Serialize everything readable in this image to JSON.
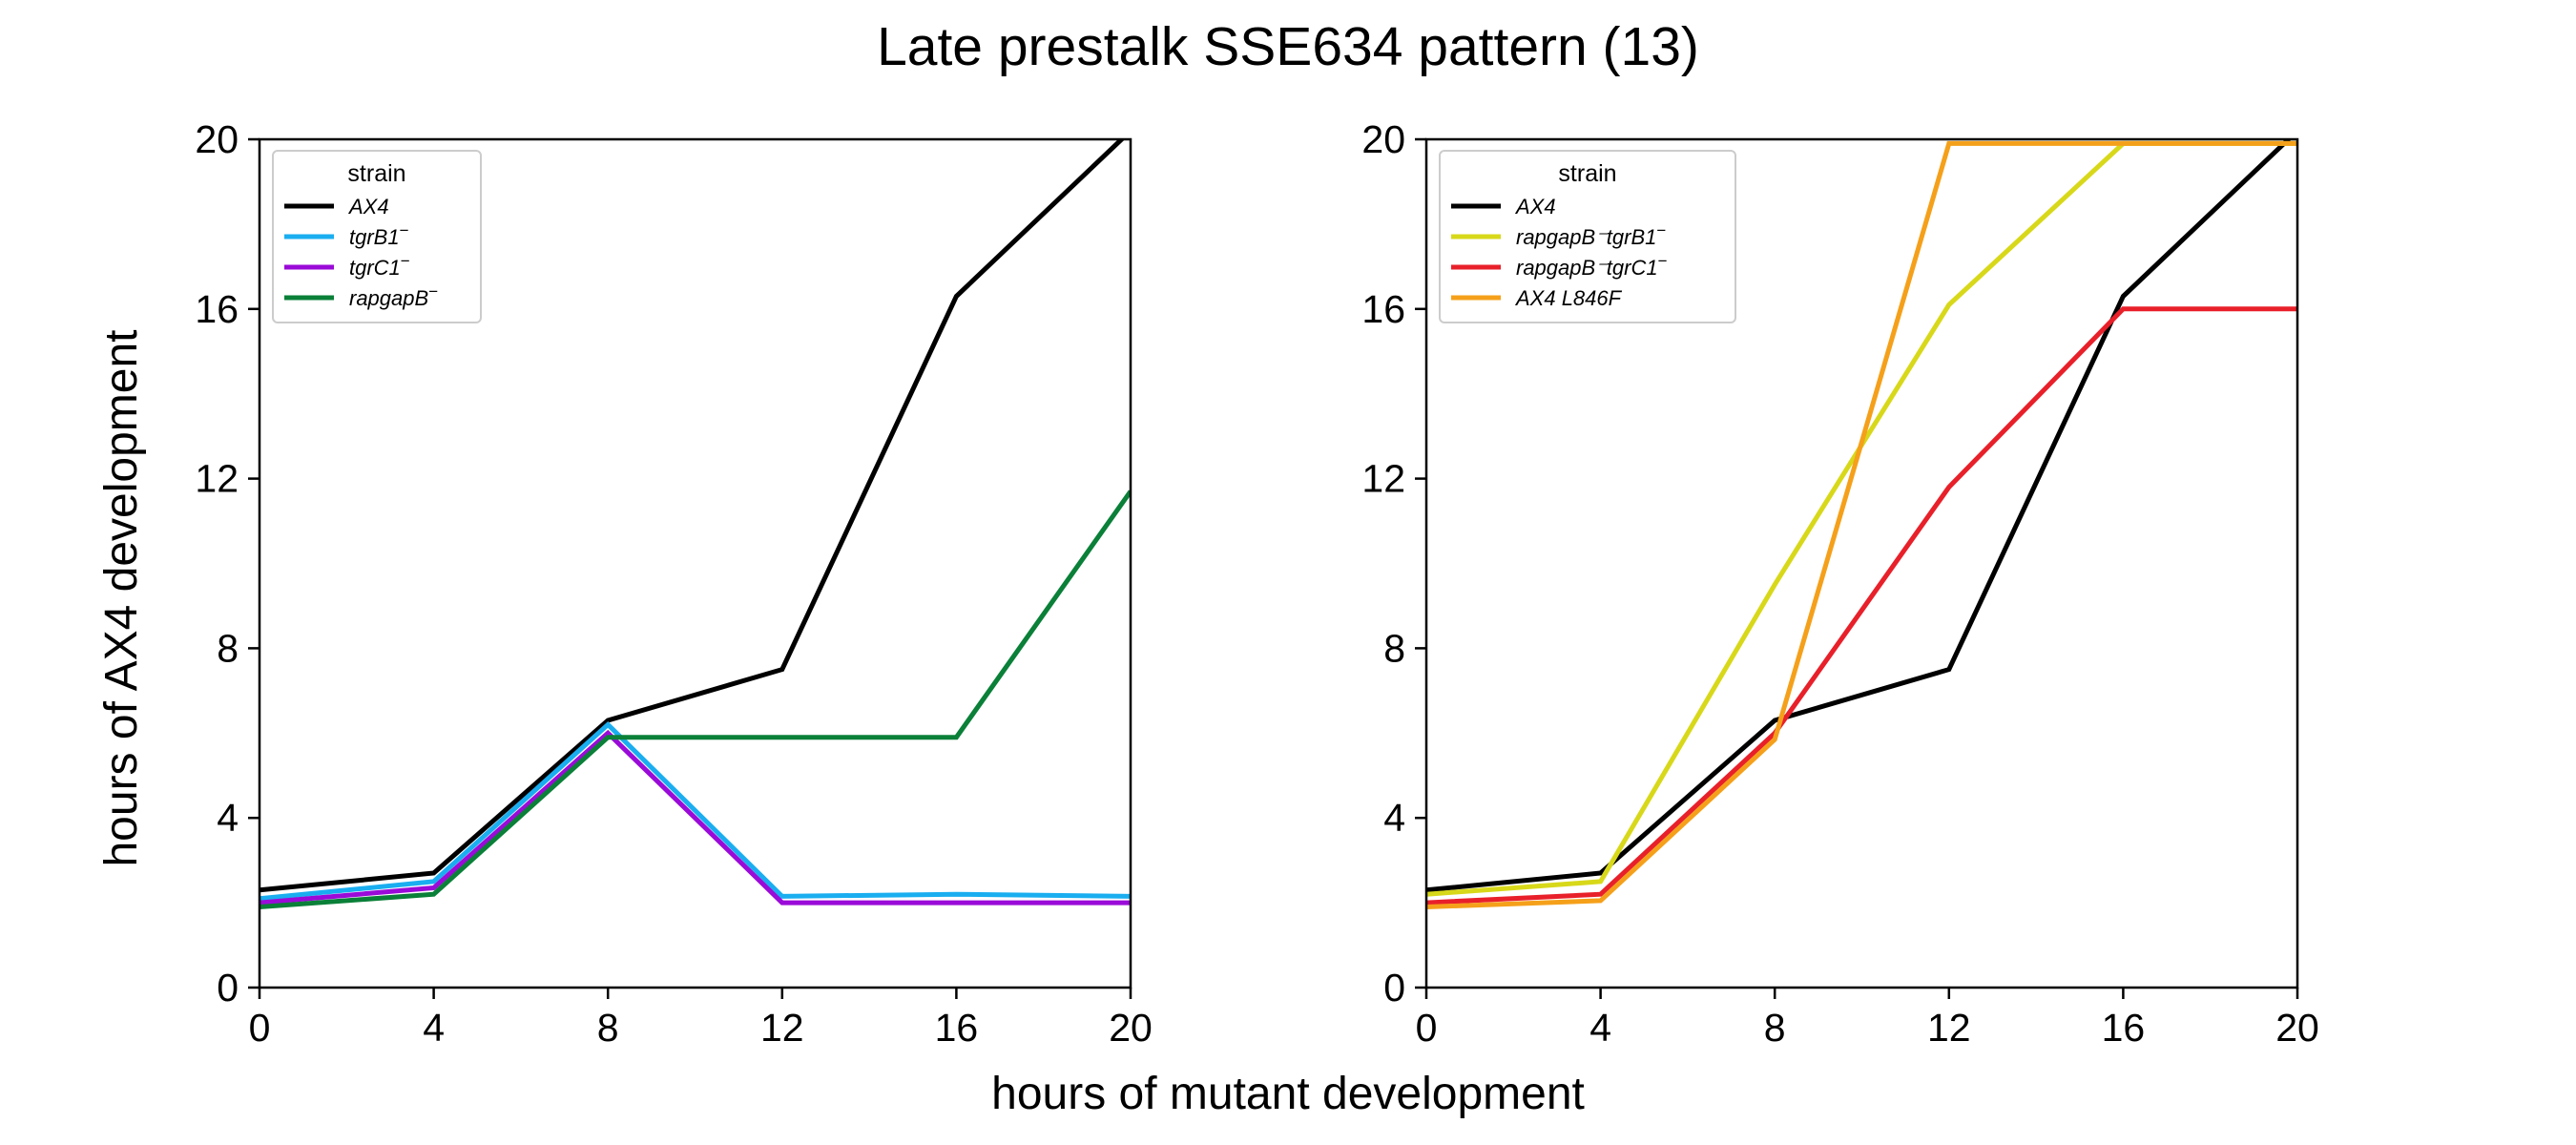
{
  "title": "Late prestalk SSE634 pattern (13)",
  "xlabel": "hours of mutant development",
  "ylabel": "hours of AX4 development",
  "chart_data": [
    {
      "type": "line",
      "x": [
        0,
        4,
        8,
        12,
        16,
        20
      ],
      "xlim": [
        0,
        20
      ],
      "ylim": [
        0,
        20
      ],
      "xticks": [
        "0",
        "4",
        "8",
        "12",
        "16",
        "20"
      ],
      "yticks": [
        "0",
        "4",
        "8",
        "12",
        "16",
        "20"
      ],
      "grid": false,
      "legend": {
        "title": "strain",
        "position": "top-left"
      },
      "series": [
        {
          "name": "AX4",
          "name_main": "AX4",
          "name_sup": "",
          "color": "#000000",
          "values": [
            2.3,
            2.7,
            6.3,
            7.5,
            16.3,
            20.2
          ]
        },
        {
          "name": "tgrB1⁻",
          "name_main": "tgrB1",
          "name_sup": "−",
          "color": "#1aaef0",
          "values": [
            2.1,
            2.5,
            6.2,
            2.15,
            2.2,
            2.15
          ]
        },
        {
          "name": "tgrC1⁻",
          "name_main": "tgrC1",
          "name_sup": "−",
          "color": "#9a0ad8",
          "values": [
            2.0,
            2.35,
            6.0,
            2.0,
            2.0,
            2.0
          ]
        },
        {
          "name": "rapgapB⁻",
          "name_main": "rapgapB",
          "name_sup": "−",
          "color": "#0a8038",
          "values": [
            1.9,
            2.2,
            5.9,
            5.9,
            5.9,
            11.7
          ]
        }
      ]
    },
    {
      "type": "line",
      "x": [
        0,
        4,
        8,
        12,
        16,
        20
      ],
      "xlim": [
        0,
        20
      ],
      "ylim": [
        0,
        20
      ],
      "xticks": [
        "0",
        "4",
        "8",
        "12",
        "16",
        "20"
      ],
      "yticks": [
        "0",
        "4",
        "8",
        "12",
        "16",
        "20"
      ],
      "grid": false,
      "legend": {
        "title": "strain",
        "position": "top-left"
      },
      "series": [
        {
          "name": "AX4",
          "name_main": "AX4",
          "name_sup": "",
          "color": "#000000",
          "values": [
            2.3,
            2.7,
            6.3,
            7.5,
            16.3,
            20.2
          ]
        },
        {
          "name": "rapgapB⁻tgrB1⁻",
          "name_main": "rapgapB⁻tgrB1",
          "name_sup": "−",
          "color": "#d8d81a",
          "values": [
            2.2,
            2.5,
            9.5,
            16.1,
            19.9,
            19.9
          ]
        },
        {
          "name": "rapgapB⁻tgrC1⁻",
          "name_main": "rapgapB⁻tgrC1",
          "name_sup": "−",
          "color": "#e8202a",
          "values": [
            2.0,
            2.2,
            6.0,
            11.8,
            16.0,
            16.0
          ]
        },
        {
          "name": "AX4 L846F",
          "name_main": "AX4 L846F",
          "name_sup": "",
          "color": "#f5a01a",
          "values": [
            1.9,
            2.05,
            5.85,
            19.9,
            19.9,
            19.9
          ]
        }
      ]
    }
  ]
}
